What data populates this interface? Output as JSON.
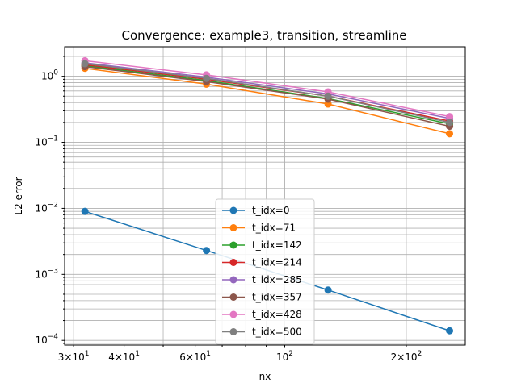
{
  "chart_data": {
    "type": "line",
    "title": "Convergence: example3, transition, streamline",
    "xlabel": "nx",
    "ylabel": "L2 error",
    "xscale": "log",
    "yscale": "log",
    "xlim": [
      28.5,
      280
    ],
    "ylim": [
      8.5e-05,
      2.8
    ],
    "grid": true,
    "legend_position": "lower-center",
    "x_ticks": [
      {
        "value": 30,
        "base": "3×10",
        "exp": "1"
      },
      {
        "value": 40,
        "base": "4×10",
        "exp": "1"
      },
      {
        "value": 60,
        "base": "6×10",
        "exp": "1"
      },
      {
        "value": 100,
        "base": "10",
        "exp": "2"
      },
      {
        "value": 200,
        "base": "2×10",
        "exp": "2"
      }
    ],
    "y_ticks": [
      {
        "value": 0.0001,
        "base": "10",
        "exp": "−4"
      },
      {
        "value": 0.001,
        "base": "10",
        "exp": "−3"
      },
      {
        "value": 0.01,
        "base": "10",
        "exp": "−2"
      },
      {
        "value": 0.1,
        "base": "10",
        "exp": "−1"
      },
      {
        "value": 1,
        "base": "10",
        "exp": "0"
      }
    ],
    "x": [
      32,
      64,
      128,
      256
    ],
    "series": [
      {
        "name": "t_idx=0",
        "color": "#1f77b4",
        "values": [
          0.009,
          0.0023,
          0.00058,
          0.00014
        ]
      },
      {
        "name": "t_idx=71",
        "color": "#ff7f0e",
        "values": [
          1.32,
          0.76,
          0.38,
          0.135
        ]
      },
      {
        "name": "t_idx=142",
        "color": "#2ca02c",
        "values": [
          1.45,
          0.86,
          0.46,
          0.19
        ]
      },
      {
        "name": "t_idx=214",
        "color": "#d62728",
        "values": [
          1.5,
          0.9,
          0.5,
          0.21
        ]
      },
      {
        "name": "t_idx=285",
        "color": "#9467bd",
        "values": [
          1.6,
          0.97,
          0.54,
          0.23
        ]
      },
      {
        "name": "t_idx=357",
        "color": "#8c564b",
        "values": [
          1.4,
          0.83,
          0.45,
          0.175
        ]
      },
      {
        "name": "t_idx=428",
        "color": "#e377c2",
        "values": [
          1.72,
          1.05,
          0.58,
          0.245
        ]
      },
      {
        "name": "t_idx=500",
        "color": "#7f7f7f",
        "values": [
          1.55,
          0.93,
          0.5,
          0.2
        ]
      }
    ]
  }
}
